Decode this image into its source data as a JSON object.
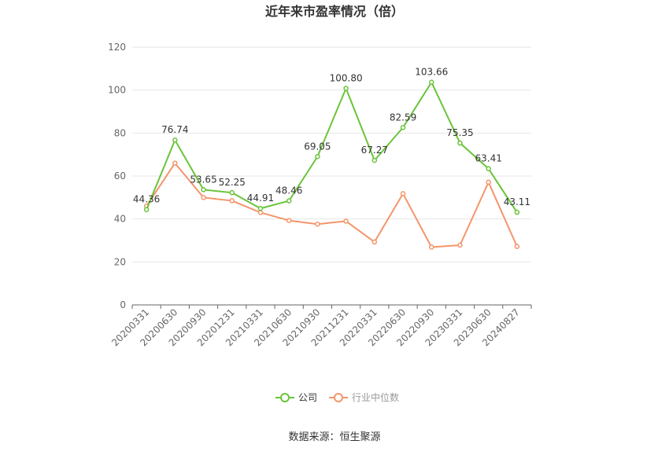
{
  "chart_data": {
    "type": "line",
    "title": "近年来市盈率情况（倍）",
    "categories": [
      "20200331",
      "20200630",
      "20200930",
      "20201231",
      "20210331",
      "20210630",
      "20210930",
      "20211231",
      "20220331",
      "20220630",
      "20220930",
      "20230331",
      "20230630",
      "20240827"
    ],
    "series": [
      {
        "name": "公司",
        "color": "#6ac43a",
        "values": [
          44.36,
          76.74,
          53.65,
          52.25,
          44.91,
          48.46,
          69.05,
          100.8,
          67.27,
          82.59,
          103.66,
          75.35,
          63.41,
          43.11
        ],
        "labels": [
          "44.36",
          "76.74",
          "53.65",
          "52.25",
          "44.91",
          "48.46",
          "69.05",
          "100.80",
          "67.27",
          "82.59",
          "103.66",
          "75.35",
          "63.41",
          "43.11"
        ]
      },
      {
        "name": "行业中位数",
        "color": "#f4956b",
        "values": [
          46.0,
          66.0,
          50.0,
          48.5,
          43.0,
          39.3,
          37.6,
          39.0,
          29.3,
          51.8,
          26.9,
          27.8,
          57.1,
          27.2
        ]
      }
    ],
    "ylim": [
      0,
      120
    ],
    "yticks": [
      0,
      20,
      40,
      60,
      80,
      100,
      120
    ],
    "xlabel": "",
    "ylabel": "",
    "grid": true,
    "legend": "bottom-center"
  },
  "source": "数据来源：恒生聚源"
}
